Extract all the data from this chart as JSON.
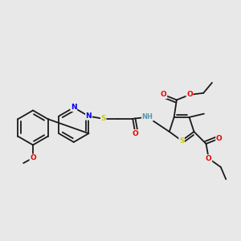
{
  "bg_color": "#e8e8e8",
  "bond_color": "#1a1a1a",
  "atom_colors": {
    "N": "#0000ee",
    "O": "#ee0000",
    "S": "#cccc00",
    "NH": "#5599aa",
    "C": "#1a1a1a"
  },
  "figsize": [
    3.0,
    3.0
  ],
  "dpi": 100
}
